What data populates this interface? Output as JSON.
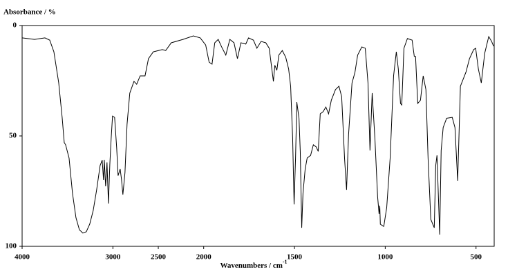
{
  "chart_data": {
    "type": "line",
    "ylabel": "Absorbance / %",
    "xlabel": "Wavenumbers / cm",
    "xlabel_sup": "-1",
    "xlim": [
      4000,
      400
    ],
    "x_scale_break": 2000,
    "x_scale_ratio": 2,
    "ylim": [
      0,
      100
    ],
    "y_inverted": true,
    "xticks": [
      4000,
      3000,
      2500,
      2000,
      1500,
      1000,
      500
    ],
    "yticks": [
      0,
      50,
      100
    ],
    "series": [
      {
        "color": "#000000",
        "x": [
          4000,
          3863,
          3749,
          3696,
          3650,
          3597,
          3559,
          3536,
          3521,
          3483,
          3445,
          3407,
          3369,
          3331,
          3293,
          3255,
          3217,
          3179,
          3141,
          3118,
          3103,
          3095,
          3080,
          3065,
          3049,
          3034,
          3019,
          3004,
          2981,
          2958,
          2943,
          2920,
          2905,
          2890,
          2867,
          2844,
          2814,
          2768,
          2738,
          2700,
          2646,
          2608,
          2555,
          2456,
          2418,
          2357,
          2228,
          2114,
          2038,
          1989,
          1970,
          1954,
          1939,
          1920,
          1901,
          1878,
          1856,
          1833,
          1814,
          1795,
          1768,
          1753,
          1726,
          1707,
          1684,
          1658,
          1639,
          1616,
          1608,
          1597,
          1586,
          1567,
          1548,
          1532,
          1521,
          1510,
          1502,
          1494,
          1487,
          1475,
          1468,
          1460,
          1453,
          1441,
          1430,
          1411,
          1396,
          1380,
          1369,
          1358,
          1342,
          1327,
          1312,
          1297,
          1274,
          1255,
          1240,
          1224,
          1213,
          1202,
          1183,
          1167,
          1152,
          1129,
          1110,
          1095,
          1084,
          1072,
          1057,
          1042,
          1034,
          1030,
          1027,
          1008,
          992,
          973,
          954,
          939,
          928,
          916,
          909,
          897,
          878,
          852,
          840,
          833,
          821,
          806,
          791,
          776,
          764,
          749,
          730,
          722,
          715,
          700,
          692,
          681,
          662,
          631,
          616,
          601,
          586,
          555,
          536,
          513,
          502,
          487,
          471,
          452,
          430,
          414,
          403
        ],
        "values": [
          5.6,
          6.3,
          5.6,
          6.6,
          11.9,
          25.9,
          41.6,
          53,
          54,
          60,
          76,
          87,
          92.5,
          94,
          93.4,
          89.9,
          83.8,
          74.4,
          63.4,
          61,
          70,
          60.9,
          72.8,
          62,
          80.6,
          63,
          51,
          41,
          41.6,
          55.6,
          68,
          65,
          69.7,
          76.6,
          66.6,
          44.7,
          30.6,
          25.3,
          26.6,
          22.8,
          22.8,
          15,
          11.9,
          10.9,
          11.3,
          7.8,
          6.3,
          4.7,
          5.6,
          8.8,
          16.6,
          17.5,
          7.8,
          6.3,
          9.7,
          13.4,
          6.3,
          7.8,
          15,
          7.8,
          8.4,
          5.6,
          6.6,
          10.3,
          7.2,
          7.8,
          10.3,
          25.3,
          18,
          20.3,
          13.4,
          11.3,
          14.4,
          19.7,
          27.5,
          51,
          81,
          60,
          34.7,
          42,
          57,
          91.6,
          76,
          65,
          60,
          58.8,
          54,
          55,
          57,
          40,
          39,
          36.9,
          40,
          33.8,
          29,
          27.5,
          32.2,
          60.3,
          74.4,
          49.4,
          26,
          21.3,
          13.4,
          9.7,
          10.3,
          26,
          56.6,
          30.6,
          51,
          77.5,
          85.3,
          81.6,
          90,
          91,
          82.5,
          60,
          22.8,
          11.9,
          19.7,
          35.3,
          36,
          10.3,
          5.9,
          6.6,
          14,
          14,
          35.3,
          33.8,
          22.8,
          29,
          60.3,
          87.8,
          91.6,
          63.4,
          58.8,
          94.7,
          56.6,
          46.2,
          42,
          41.6,
          46.2,
          70.3,
          27.5,
          21,
          15,
          10.9,
          10.3,
          19.7,
          26,
          12.5,
          5,
          7.2,
          9.4
        ]
      }
    ]
  }
}
